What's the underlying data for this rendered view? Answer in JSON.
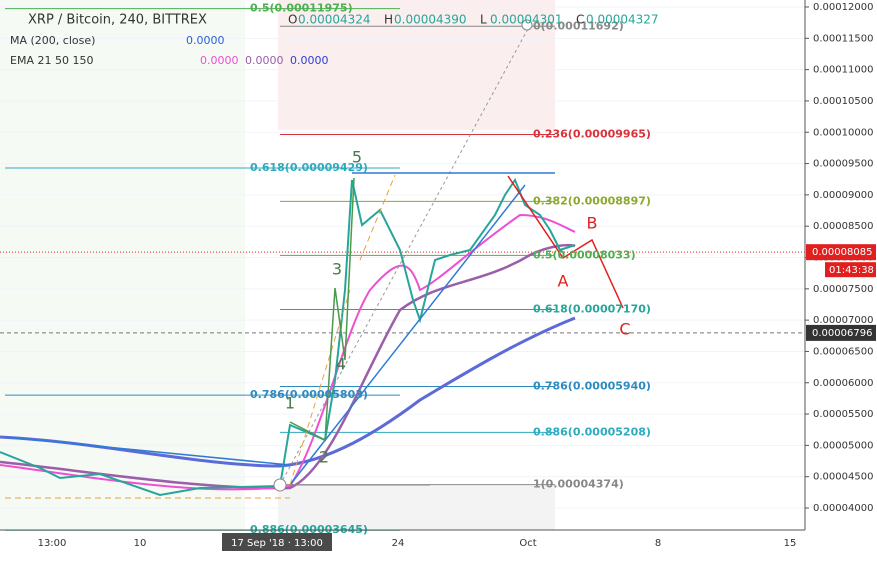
{
  "header": {
    "symbol": "XRP / Bitcoin, 240, BITTREX",
    "ohlc": [
      {
        "key": "O",
        "value": "0.00004324"
      },
      {
        "key": "H",
        "value": "0.00004390"
      },
      {
        "key": "L",
        "value": "0.00004301"
      },
      {
        "key": "C",
        "value": "0.00004327"
      }
    ]
  },
  "indicators": [
    {
      "name": "MA (200, close)",
      "values": [
        "0.0000"
      ]
    },
    {
      "name": "EMA 21 50 150",
      "values": [
        "0.0000",
        "0.0000",
        "0.0000"
      ]
    }
  ],
  "price_axis": {
    "range": [
      4e-05,
      0.00012
    ],
    "ticks": [
      {
        "value": 0.00012,
        "label": "0.00012000"
      },
      {
        "value": 0.000115,
        "label": "0.00011500"
      },
      {
        "value": 0.00011,
        "label": "0.00011000"
      },
      {
        "value": 0.000105,
        "label": "0.00010500"
      },
      {
        "value": 0.0001,
        "label": "0.00010000"
      },
      {
        "value": 9.5e-05,
        "label": "0.00009500"
      },
      {
        "value": 9e-05,
        "label": "0.00009000"
      },
      {
        "value": 8.5e-05,
        "label": "0.00008500"
      },
      {
        "value": 8e-05,
        "label": "0.00008000"
      },
      {
        "value": 7.5e-05,
        "label": "0.00007500"
      },
      {
        "value": 7e-05,
        "label": "0.00007000"
      },
      {
        "value": 6.5e-05,
        "label": "0.00006500"
      },
      {
        "value": 6e-05,
        "label": "0.00006000"
      },
      {
        "value": 5.5e-05,
        "label": "0.00005500"
      },
      {
        "value": 5e-05,
        "label": "0.00005000"
      },
      {
        "value": 4.5e-05,
        "label": "0.00004500"
      },
      {
        "value": 4e-05,
        "label": "0.00004000"
      }
    ]
  },
  "price_tags": [
    {
      "value": 8.085e-05,
      "label": "0.00008085",
      "timer": "01:43:38"
    },
    {
      "value": 6.796e-05,
      "label": "0.00006796"
    }
  ],
  "time_axis": [
    "13:00",
    "10",
    "17 Sep '18 · 13:00",
    "24",
    "Oct",
    "8",
    "15"
  ],
  "fib_left": [
    {
      "value": 0.00011975,
      "label": "0.5(0.00011975)"
    },
    {
      "value": 9.429e-05,
      "label": "0.618(0.00009429)"
    },
    {
      "value": 5.803e-05,
      "label": "0.786(0.00005803)"
    },
    {
      "value": 3.645e-05,
      "label": "0.886(0.00003645)"
    }
  ],
  "fib_right": [
    {
      "value": 0.00011692,
      "label": "0(0.00011692)"
    },
    {
      "value": 9.965e-05,
      "label": "0.236(0.00009965)"
    },
    {
      "value": 8.897e-05,
      "label": "0.382(0.00008897)"
    },
    {
      "value": 8.033e-05,
      "label": "0.5(0.00008033)"
    },
    {
      "value": 7.17e-05,
      "label": "0.618(0.00007170)"
    },
    {
      "value": 5.94e-05,
      "label": "0.786(0.00005940)"
    },
    {
      "value": 5.208e-05,
      "label": "0.886(0.00005208)"
    },
    {
      "value": 4.374e-05,
      "label": "1(0.00004374)"
    }
  ],
  "waves": [
    "1",
    "2",
    "3",
    "4",
    "5"
  ],
  "corrections": [
    "A",
    "B",
    "C"
  ]
}
